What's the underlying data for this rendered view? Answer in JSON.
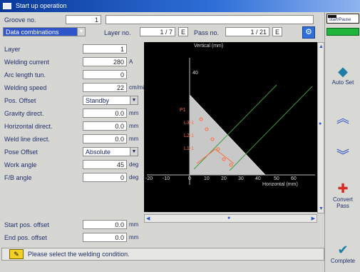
{
  "window": {
    "title": "Start up operation"
  },
  "top": {
    "groove_label": "Groove no.",
    "groove_value": "1",
    "condition_select": "Data combinations",
    "layer_label": "Layer no.",
    "layer_value": "1 / 7",
    "pass_label": "Pass no.",
    "pass_value": "1 / 21",
    "spin_left": "E",
    "spin_right": "E"
  },
  "form": {
    "layer_label": "Layer",
    "layer_value": "1",
    "current_label": "Welding current",
    "current_value": "280",
    "current_unit": "A",
    "arc_label": "Arc length tun.",
    "arc_value": "0",
    "speed_label": "Welding speed",
    "speed_value": "22",
    "speed_unit": "cm/min",
    "pos_offset_label": "Pos. Offset",
    "pos_offset_value": "Standby",
    "gravity_label": "Gravity direct.",
    "gravity_value": "0.0",
    "gravity_unit": "mm",
    "horizontal_label": "Horizontal direct.",
    "horizontal_value": "0.0",
    "horizontal_unit": "mm",
    "weldline_label": "Weld line direct.",
    "weldline_value": "0.0",
    "weldline_unit": "mm",
    "pose_offset_label": "Pose Offset",
    "pose_offset_value": "Absolute",
    "work_angle_label": "Work angle",
    "work_angle_value": "45",
    "work_angle_unit": "deg",
    "fb_angle_label": "F/B angle",
    "fb_angle_value": "0",
    "fb_angle_unit": "deg",
    "start_offset_label": "Start pos. offset",
    "start_offset_value": "0.0",
    "start_offset_unit": "mm",
    "end_offset_label": "End pos. offset",
    "end_offset_value": "0.0",
    "end_offset_unit": "mm"
  },
  "plot": {
    "y_title": "Vertical (mm)",
    "x_title": "Horizontal (mm)",
    "y_ticks": [
      "40"
    ],
    "x_ticks": [
      "-20",
      "-10",
      "0",
      "10",
      "20",
      "30",
      "40",
      "50",
      "60"
    ],
    "pass_labels": [
      "P1",
      "L3-1",
      "L2-1",
      "L1-1"
    ]
  },
  "status": {
    "message": "Please select the welding condition."
  },
  "sidebar": {
    "top_label": "Start/Pause",
    "auto_set": "Auto Set",
    "up": "",
    "down": "",
    "convert": "Convert Pass",
    "complete": "Complete"
  },
  "colors": {
    "title": "#0a3a9a",
    "accent": "#2f55c8",
    "status_green": "#1fb43a",
    "plot_bg": "#000000"
  }
}
